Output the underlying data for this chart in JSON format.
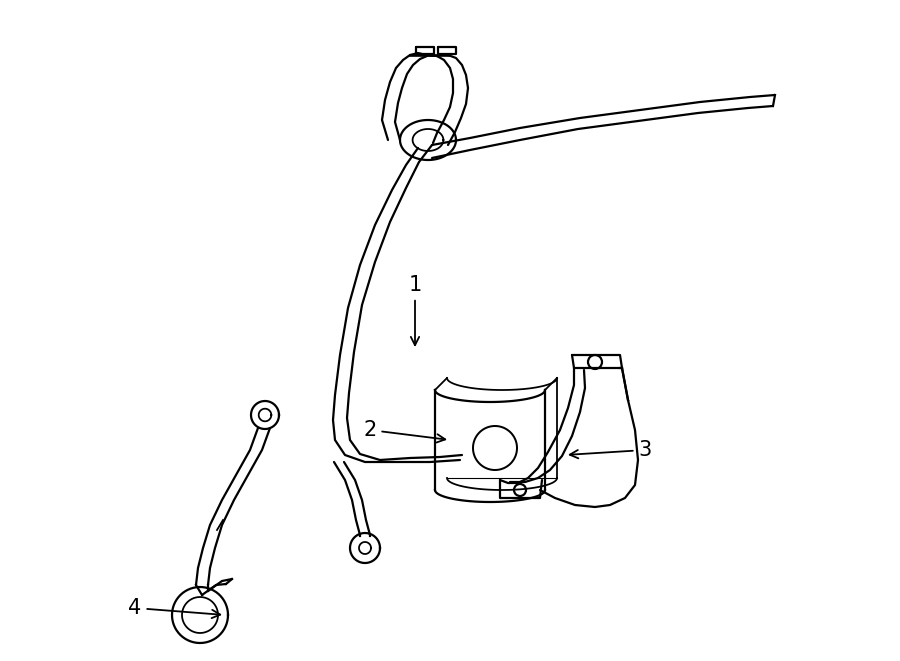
{
  "background_color": "#ffffff",
  "line_color": "#000000",
  "lw": 1.6,
  "figure_width": 9.0,
  "figure_height": 6.61,
  "dpi": 100
}
